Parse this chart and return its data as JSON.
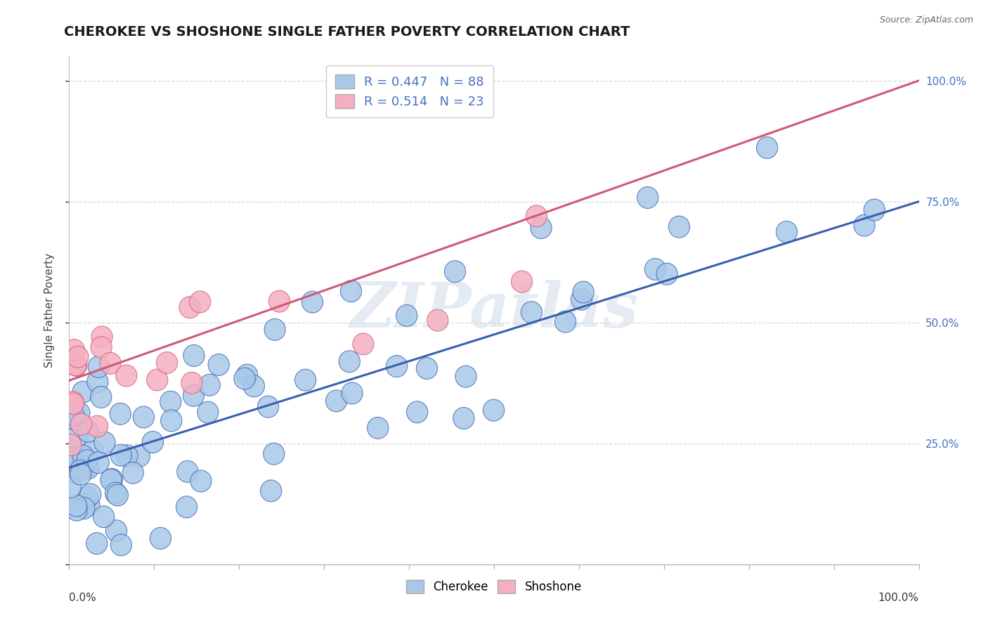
{
  "title": "CHEROKEE VS SHOSHONE SINGLE FATHER POVERTY CORRELATION CHART",
  "source": "Source: ZipAtlas.com",
  "ylabel": "Single Father Poverty",
  "cherokee_R": 0.447,
  "cherokee_N": 88,
  "shoshone_R": 0.514,
  "shoshone_N": 23,
  "cherokee_color": "#a8c8e8",
  "shoshone_color": "#f4b0c0",
  "cherokee_line_color": "#3a5fb0",
  "shoshone_line_color": "#d05878",
  "right_axis_color": "#4472c4",
  "background_color": "#ffffff",
  "grid_color": "#d8d8d8",
  "watermark_text": "ZIPatlas",
  "watermark_color": "#d0dce8",
  "cherokee_line_x0": 0,
  "cherokee_line_y0": 20,
  "cherokee_line_x1": 100,
  "cherokee_line_y1": 75,
  "shoshone_line_x0": 0,
  "shoshone_line_y0": 38,
  "shoshone_line_x1": 100,
  "shoshone_line_y1": 100,
  "xlim": [
    0,
    100
  ],
  "ylim": [
    0,
    105
  ],
  "right_ytick_values": [
    0,
    25,
    50,
    75,
    100
  ],
  "right_ytick_labels": [
    "",
    "25.0%",
    "50.0%",
    "75.0%",
    "100.0%"
  ],
  "xtick_values": [
    0,
    10,
    20,
    30,
    40,
    50,
    60,
    70,
    80,
    90,
    100
  ],
  "title_fontsize": 14,
  "source_fontsize": 9,
  "label_fontsize": 11,
  "legend_fontsize": 13
}
